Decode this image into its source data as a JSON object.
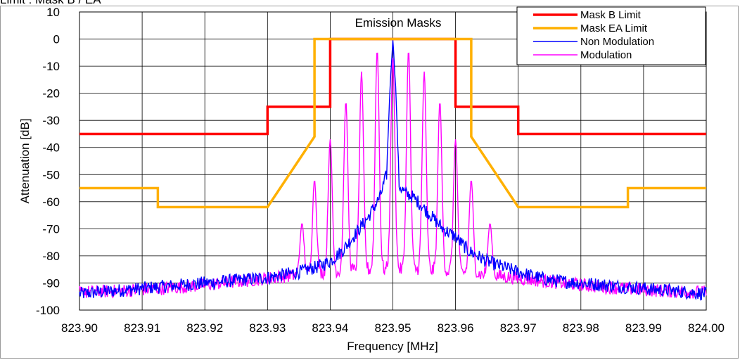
{
  "page": {
    "top_label": "Limit : Mask B / EA"
  },
  "chart_data": {
    "type": "line",
    "title": "Emission Masks",
    "xlabel": "Frequency [MHz]",
    "ylabel": "Attenuation [dB]",
    "xlim": [
      823.9,
      824.0
    ],
    "ylim": [
      -100,
      10
    ],
    "x_ticks": [
      823.9,
      823.91,
      823.92,
      823.93,
      823.94,
      823.95,
      823.96,
      823.97,
      823.98,
      823.99,
      824.0
    ],
    "x_tick_labels": [
      "823.90",
      "823.91",
      "823.92",
      "823.93",
      "823.94",
      "823.95",
      "823.96",
      "823.97",
      "823.98",
      "823.99",
      "824.00"
    ],
    "y_ticks": [
      10,
      0,
      -10,
      -20,
      -30,
      -40,
      -50,
      -60,
      -70,
      -80,
      -90,
      -100
    ],
    "y_tick_labels": [
      "10",
      "0",
      "-10",
      "-20",
      "-30",
      "-40",
      "-50",
      "-60",
      "-70",
      "-80",
      "-90",
      "-100"
    ],
    "grid": true,
    "legend_position": "top-right",
    "series": [
      {
        "name": "Mask B Limit",
        "color": "#ff0000",
        "width": 3.5,
        "x": [
          823.9,
          823.93,
          823.93,
          823.94,
          823.94,
          823.96,
          823.96,
          823.97,
          823.97,
          824.0
        ],
        "y": [
          -35,
          -35,
          -25,
          -25,
          0,
          0,
          -25,
          -25,
          -35,
          -35
        ]
      },
      {
        "name": "Mask EA Limit",
        "color": "#ffb000",
        "width": 3.5,
        "x": [
          823.9,
          823.9125,
          823.9125,
          823.93,
          823.9375,
          823.9375,
          823.9625,
          823.9625,
          823.97,
          823.9875,
          823.9875,
          824.0
        ],
        "y": [
          -55,
          -55,
          -62,
          -62,
          -36,
          0,
          0,
          -36,
          -62,
          -62,
          -55,
          -55
        ]
      },
      {
        "name": "Non Modulation",
        "color": "#0000ff",
        "width": 1.4,
        "x": [
          823.9,
          823.905,
          823.91,
          823.915,
          823.92,
          823.925,
          823.93,
          823.935,
          823.938,
          823.94,
          823.942,
          823.944,
          823.946,
          823.947,
          823.948,
          823.949,
          823.9495,
          823.95,
          823.9505,
          823.951,
          823.952,
          823.953,
          823.954,
          823.956,
          823.958,
          823.96,
          823.962,
          823.965,
          823.97,
          823.975,
          823.98,
          823.985,
          823.99,
          823.995,
          824.0
        ],
        "y": [
          -94,
          -93,
          -92,
          -91,
          -90,
          -89,
          -88,
          -86,
          -84,
          -82,
          -78,
          -72,
          -66,
          -62,
          -58,
          -50,
          -20,
          0,
          -20,
          -54,
          -57,
          -58,
          -60,
          -65,
          -70,
          -73,
          -78,
          -82,
          -86,
          -89,
          -90,
          -91,
          -92,
          -93,
          -94
        ]
      },
      {
        "name": "Modulation",
        "color": "#ff00ff",
        "width": 1.4,
        "x": [
          823.9355,
          823.9375,
          823.94,
          823.9425,
          823.945,
          823.9475,
          823.95,
          823.9525,
          823.955,
          823.9575,
          823.96,
          823.9625,
          823.9655
        ],
        "y": [
          -68,
          -52,
          -37,
          -23,
          -12,
          -4,
          -7,
          -4,
          -12,
          -23,
          -37,
          -52,
          -68
        ]
      }
    ]
  }
}
